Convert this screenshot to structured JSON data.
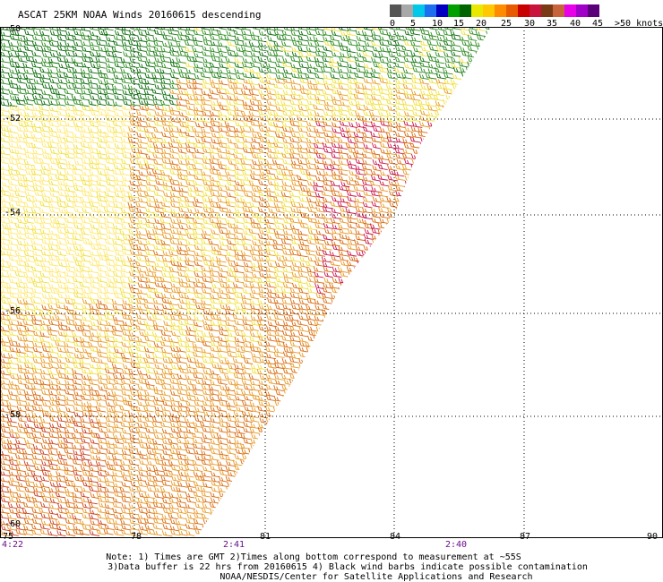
{
  "title": "ASCAT 25KM NOAA Winds 20160615 descending",
  "legend": {
    "colors": [
      "#555555",
      "#a8a8a8",
      "#00c8e8",
      "#1e6ef0",
      "#0000c0",
      "#00a000",
      "#006400",
      "#e8e800",
      "#ffc800",
      "#ff8c00",
      "#e85a00",
      "#c80000",
      "#c8143c",
      "#7a3a14",
      "#c8643c",
      "#e800e8",
      "#a000c8",
      "#5a0078"
    ],
    "tick_labels": [
      "0",
      "5",
      "10",
      "15",
      "20",
      "25",
      "30",
      "35",
      "40",
      "45",
      ">50 knots"
    ]
  },
  "axes": {
    "lat_labels": [
      "-50",
      "-52",
      "-54",
      "-56",
      "-58",
      "-60"
    ],
    "lon_labels": [
      "75",
      "78",
      "81",
      "84",
      "87",
      "90"
    ],
    "time_labels": [
      "4:22",
      "2:41",
      "2:40"
    ]
  },
  "notes": [
    "Note: 1) Times are GMT 2)Times along bottom correspond to measurement at ~55S",
    "3)Data buffer is 22 hrs from 20160615 4) Black wind barbs indicate possible contamination",
    "NOAA/NESDIS/Center for Satellite Applications and Research"
  ]
}
